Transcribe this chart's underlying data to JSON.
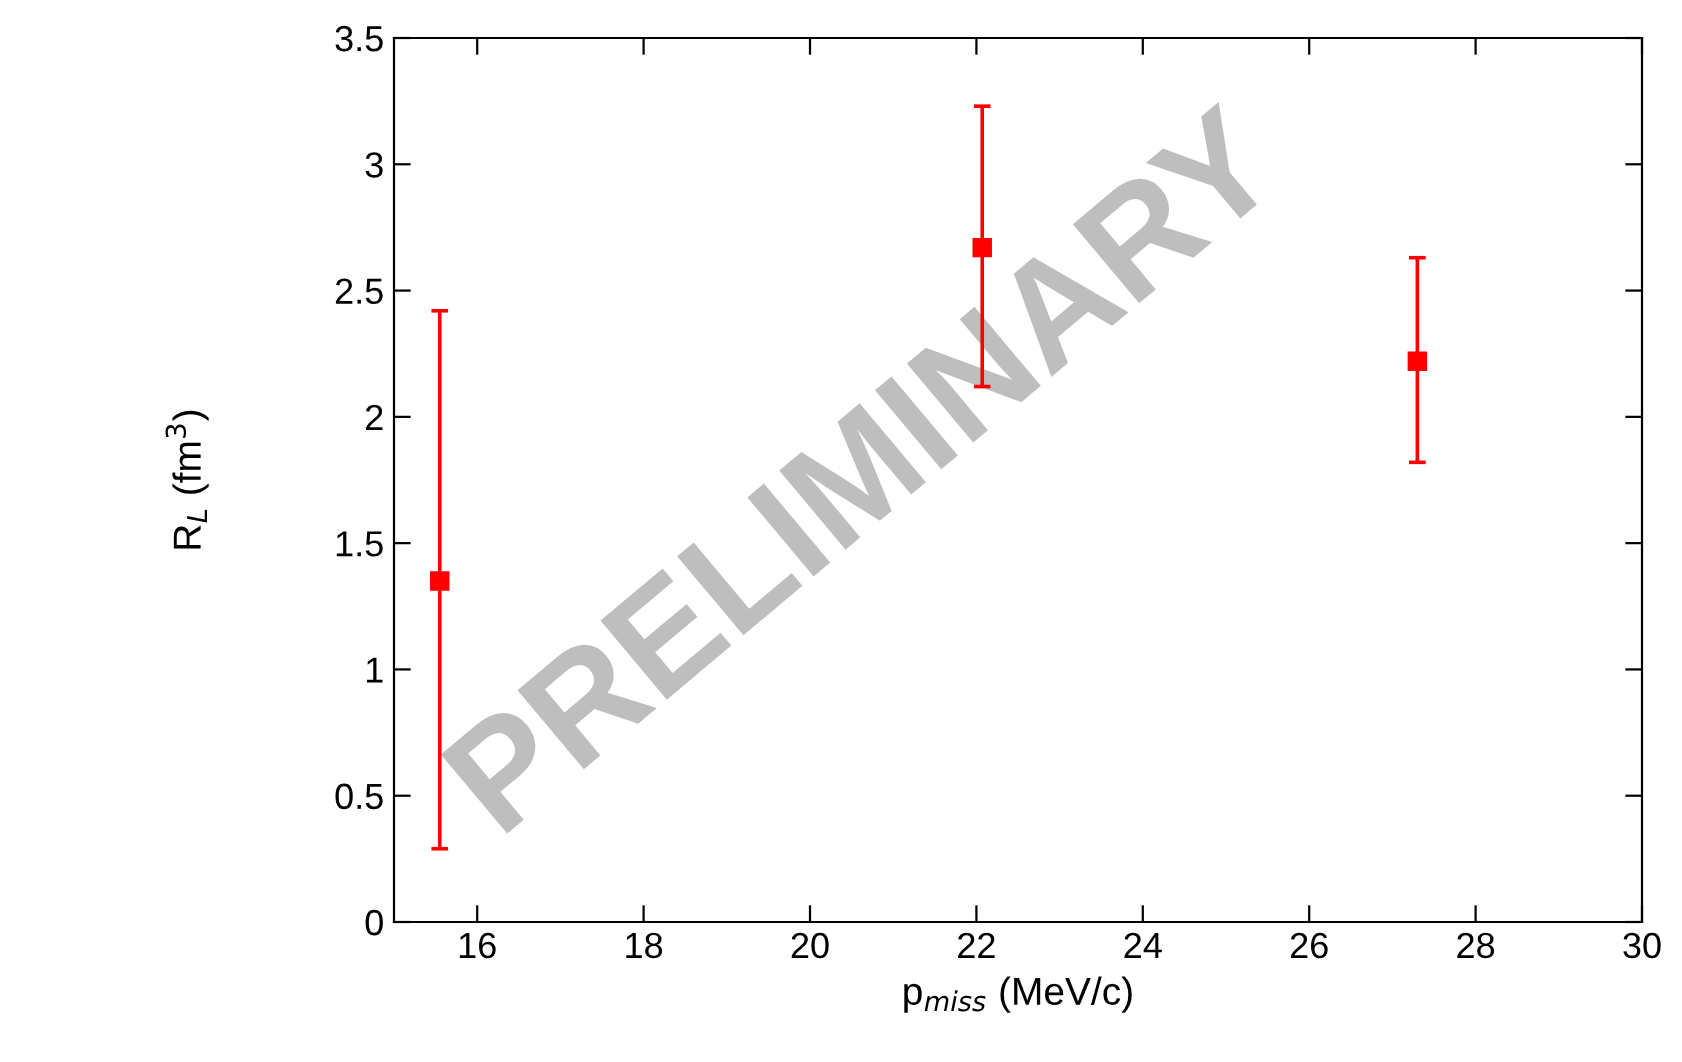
{
  "chart_data": {
    "type": "scatter",
    "xlabel": "p$_{miss}$ (MeV/c)",
    "ylabel": "R$_{L}$ (fm$^{3}$)",
    "x": [
      15.55,
      22.07,
      27.3
    ],
    "series": [
      {
        "color": "#ff0000",
        "values": [
          1.35,
          2.67,
          2.22
        ],
        "errors": [
          [
            0.29,
            2.42
          ],
          [
            2.12,
            3.23
          ],
          [
            1.82,
            2.63
          ]
        ]
      }
    ],
    "xlim": [
      15,
      30
    ],
    "xticks": [
      16,
      18,
      20,
      22,
      24,
      26,
      28,
      30
    ],
    "ylim": [
      0,
      3.5
    ],
    "yticks": [
      0,
      {
        "value": 0.5,
        "label": "0.5"
      },
      1,
      {
        "value": 1.5,
        "label": "1.5"
      },
      2,
      {
        "value": 2.5,
        "label": "2.5"
      },
      3,
      {
        "value": 3.5,
        "label": "3.5"
      }
    ],
    "marker": "square",
    "grid": false,
    "legend": false,
    "annotations": [
      "PRELIMINARY"
    ]
  }
}
